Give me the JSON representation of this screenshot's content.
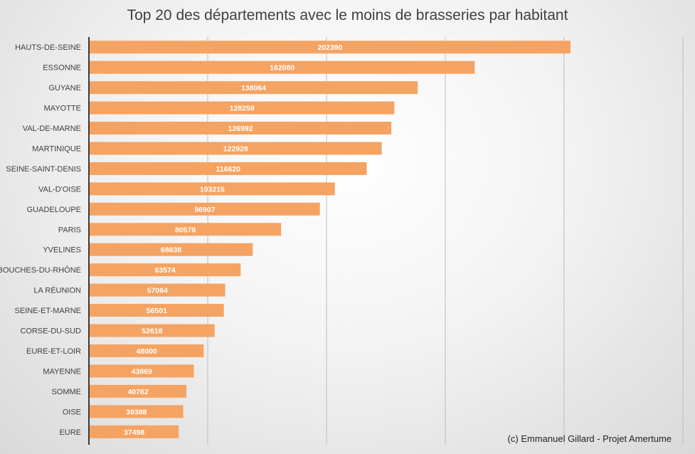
{
  "chart_data": {
    "type": "bar",
    "orientation": "horizontal",
    "title": "Top 20 des départements avec le moins de brasseries par habitant",
    "xlabel": "",
    "ylabel": "",
    "xlim": [
      0,
      250000
    ],
    "grid": "vertical",
    "categories": [
      "HAUTS-DE-SEINE",
      "ESSONNE",
      "GUYANE",
      "MAYOTTE",
      "VAL-DE-MARNE",
      "MARTINIQUE",
      "SEINE-SAINT-DENIS",
      "VAL-D'OISE",
      "GUADELOUPE",
      "PARIS",
      "YVELINES",
      "BOUCHES-DU-RHÔNE",
      "LA RÉUNION",
      "SEINE-ET-MARNE",
      "CORSE-DU-SUD",
      "EURE-ET-LOIR",
      "MAYENNE",
      "SOMME",
      "OISE",
      "EURE"
    ],
    "values": [
      202390,
      162080,
      138064,
      128259,
      126992,
      122928,
      116620,
      103215,
      96907,
      80578,
      68638,
      63574,
      57064,
      56501,
      52618,
      48000,
      43869,
      40762,
      39388,
      37498
    ],
    "bar_color": "#F5A362",
    "label_color": "#ffffff",
    "credit": "(c) Emmanuel  Gillard  - Projet Amertume"
  }
}
